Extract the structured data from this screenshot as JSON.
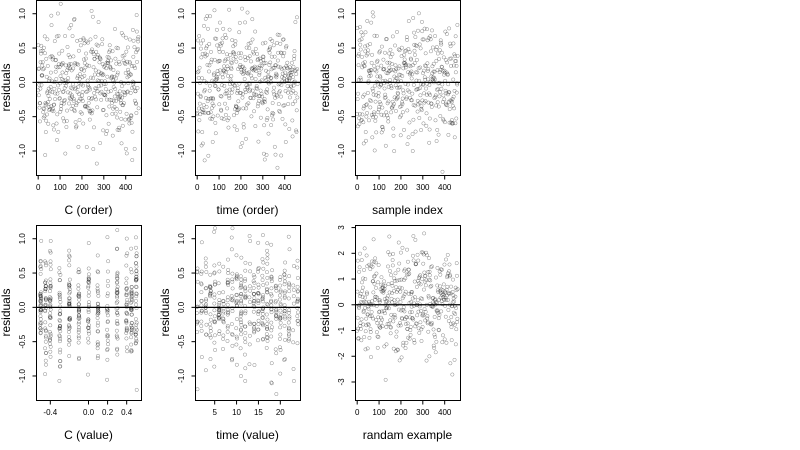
{
  "chart_data": [
    {
      "type": "scatter",
      "xlabel": "C (order)",
      "ylabel": "residuals",
      "xlim": [
        -10,
        470
      ],
      "ylim": [
        -1.35,
        1.2
      ],
      "xticks": [
        0,
        100,
        200,
        300,
        400
      ],
      "yticks": [
        -1.0,
        -0.5,
        0.0,
        0.5,
        1.0
      ],
      "hline": 0,
      "points_spec": {
        "n": 460,
        "x_start": 0,
        "x_step": 1,
        "y_mean": 0.0,
        "y_sd": 0.42,
        "seed": 11
      }
    },
    {
      "type": "scatter",
      "xlabel": "time (order)",
      "ylabel": "residuals",
      "xlim": [
        -10,
        470
      ],
      "ylim": [
        -1.35,
        1.2
      ],
      "xticks": [
        0,
        100,
        200,
        300,
        400
      ],
      "yticks": [
        -1.0,
        -0.5,
        0.0,
        0.5,
        1.0
      ],
      "hline": 0,
      "points_spec": {
        "n": 460,
        "x_start": 0,
        "x_step": 1,
        "y_mean": 0.0,
        "y_sd": 0.42,
        "seed": 23
      }
    },
    {
      "type": "scatter",
      "xlabel": "sample index",
      "ylabel": "residuals",
      "xlim": [
        -10,
        470
      ],
      "ylim": [
        -1.35,
        1.2
      ],
      "xticks": [
        0,
        100,
        200,
        300,
        400
      ],
      "yticks": [
        -1.0,
        -0.5,
        0.0,
        0.5,
        1.0
      ],
      "hline": 0,
      "points_spec": {
        "n": 460,
        "x_start": 0,
        "x_step": 1,
        "y_mean": 0.0,
        "y_sd": 0.42,
        "seed": 37
      }
    },
    {
      "type": "scatter",
      "xlabel": "C (value)",
      "ylabel": "residuals",
      "xlim": [
        -0.55,
        0.55
      ],
      "ylim": [
        -1.35,
        1.2
      ],
      "xticks": [
        -0.4,
        0.0,
        0.2,
        0.4
      ],
      "xtick_labels": [
        "-0.4",
        "0.0",
        "0.2",
        "0.4"
      ],
      "yticks": [
        -1.0,
        -0.5,
        0.0,
        0.5,
        1.0
      ],
      "hline": 0,
      "points_spec": {
        "n": 460,
        "x_values": [
          -0.5,
          -0.45,
          -0.4,
          -0.3,
          -0.2,
          -0.1,
          0.0,
          0.1,
          0.2,
          0.3,
          0.4,
          0.45,
          0.5
        ],
        "x_jitter": 0.006,
        "y_mean": 0.0,
        "y_sd": 0.42,
        "seed": 41
      }
    },
    {
      "type": "scatter",
      "xlabel": "time (value)",
      "ylabel": "residuals",
      "xlim": [
        0.5,
        24.5
      ],
      "ylim": [
        -1.35,
        1.2
      ],
      "xticks": [
        5,
        10,
        15,
        20
      ],
      "yticks": [
        -1.0,
        -0.5,
        0.0,
        0.5,
        1.0
      ],
      "hline": 0,
      "points_spec": {
        "n": 460,
        "x_values": [
          1,
          2,
          3,
          4,
          5,
          6,
          7,
          8,
          9,
          10,
          11,
          12,
          13,
          14,
          15,
          16,
          17,
          18,
          19,
          20,
          21,
          22,
          23,
          24
        ],
        "x_jitter": 0.12,
        "y_mean": 0.0,
        "y_sd": 0.42,
        "seed": 53
      }
    },
    {
      "type": "scatter",
      "xlabel": "randam example",
      "ylabel": "residuals",
      "xlim": [
        -10,
        470
      ],
      "ylim": [
        -3.7,
        3.1
      ],
      "xticks": [
        0,
        100,
        200,
        300,
        400
      ],
      "yticks": [
        -3,
        -2,
        -1,
        0,
        1,
        2,
        3
      ],
      "hline": 0,
      "points_spec": {
        "n": 460,
        "x_start": 0,
        "x_step": 1,
        "y_mean": 0.0,
        "y_sd": 1.0,
        "seed": 67
      }
    }
  ],
  "colors": {
    "points": "#000000",
    "frame": "#000000",
    "zero_line": "#000000",
    "background": "#ffffff"
  }
}
